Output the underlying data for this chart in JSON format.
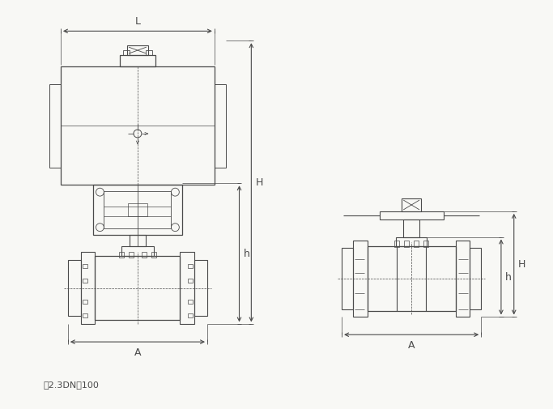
{
  "bg_color": "#f8f8f5",
  "line_color": "#4a4a4a",
  "lw": 0.7,
  "caption": "图2.3DN＞100",
  "caption_fontsize": 8,
  "dim_L": "L",
  "dim_H": "H",
  "dim_h": "h",
  "dim_A": "A",
  "figsize": [
    6.83,
    5.05
  ],
  "dpi": 100
}
